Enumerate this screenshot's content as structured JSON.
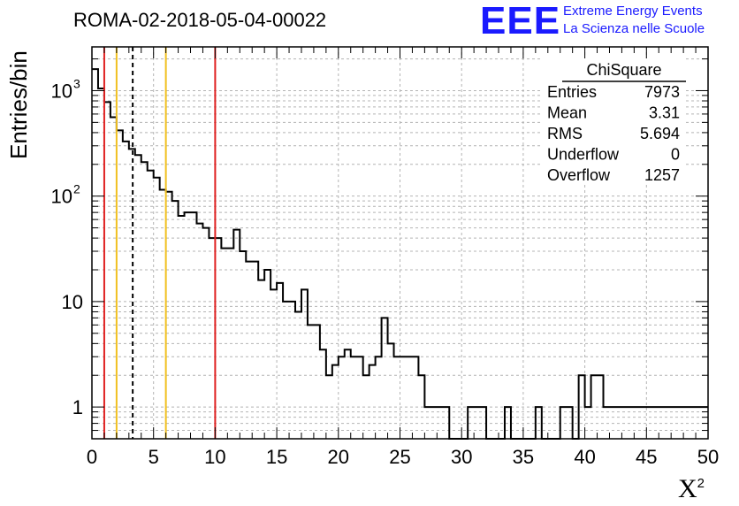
{
  "title": "ROMA-02-2018-05-04-00022",
  "logo": {
    "mark": "EEE",
    "line1": "Extreme Energy Events",
    "line2": "La Scienza nelle Scuole",
    "color": "#1a1aff"
  },
  "ylabel": "Entries/bin",
  "xlabel": {
    "symbol": "X",
    "power": "2"
  },
  "stats": {
    "title": "ChiSquare",
    "rows": [
      {
        "name": "Entries",
        "value": "7973"
      },
      {
        "name": "Mean",
        "value": "3.31"
      },
      {
        "name": "RMS",
        "value": "5.694"
      },
      {
        "name": "Underflow",
        "value": "0"
      },
      {
        "name": "Overflow",
        "value": "1257"
      }
    ]
  },
  "chart_data": {
    "type": "histogram",
    "xlim": [
      0,
      50
    ],
    "ylim": [
      0.5,
      2600
    ],
    "yscale": "log",
    "grid": true,
    "bin_width": 0.5,
    "x_ticks": [
      "0",
      "5",
      "10",
      "15",
      "20",
      "25",
      "30",
      "35",
      "40",
      "45",
      "50"
    ],
    "y_ticks": [
      {
        "base": "1",
        "exp": ""
      },
      {
        "base": "10",
        "exp": ""
      },
      {
        "base": "10",
        "exp": "2"
      },
      {
        "base": "10",
        "exp": "3"
      }
    ],
    "values": [
      1600,
      1050,
      780,
      560,
      420,
      330,
      280,
      245,
      210,
      175,
      150,
      115,
      110,
      90,
      65,
      70,
      70,
      55,
      50,
      40,
      40,
      32,
      32,
      48,
      30,
      24,
      24,
      16,
      20,
      13,
      15,
      10,
      10,
      8,
      13,
      6,
      6,
      3.5,
      2,
      2.5,
      3,
      3.5,
      3,
      3,
      2,
      2.5,
      3,
      7,
      4,
      3,
      3,
      3,
      3,
      2,
      1,
      1,
      1,
      1,
      0,
      0,
      0,
      1,
      1,
      1,
      0,
      0,
      0,
      1,
      0,
      0,
      0,
      0,
      1,
      0,
      0,
      0,
      1,
      1,
      0,
      2,
      1,
      2,
      2,
      1,
      1,
      1,
      1,
      1,
      1,
      1,
      1,
      1,
      1,
      1,
      1,
      1,
      1,
      1,
      1,
      1
    ],
    "vertical_lines": [
      {
        "x": 1,
        "color": "#e02020",
        "style": "solid"
      },
      {
        "x": 2,
        "color": "#f0c020",
        "style": "solid"
      },
      {
        "x": 3.31,
        "color": "#000000",
        "style": "dashed"
      },
      {
        "x": 6,
        "color": "#f0c020",
        "style": "solid"
      },
      {
        "x": 10,
        "color": "#e02020",
        "style": "solid"
      }
    ]
  }
}
